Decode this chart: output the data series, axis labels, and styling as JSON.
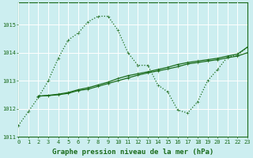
{
  "bg_color": "#cceef0",
  "grid_color": "#ffffff",
  "line_color": "#1a6b1a",
  "line1_x": [
    0,
    1,
    2,
    3,
    4,
    5,
    6,
    7,
    8,
    9,
    10,
    11,
    12,
    13,
    14,
    15,
    16,
    17,
    18,
    19,
    20,
    21,
    22,
    23
  ],
  "line1_y": [
    1011.4,
    1011.9,
    1012.4,
    1013.0,
    1013.8,
    1014.45,
    1014.7,
    1015.1,
    1015.3,
    1015.3,
    1014.8,
    1014.0,
    1013.55,
    1013.55,
    1012.85,
    1012.6,
    1011.95,
    1011.85,
    1012.25,
    1013.0,
    1013.4,
    1013.85,
    1013.9,
    1014.2
  ],
  "line2_x": [
    2,
    3,
    4,
    5,
    6,
    7,
    8,
    9,
    10,
    11,
    12,
    13,
    14,
    15,
    16,
    17,
    18,
    19,
    20,
    21,
    22,
    23
  ],
  "line2_y": [
    1012.45,
    1012.47,
    1012.5,
    1012.55,
    1012.65,
    1012.7,
    1012.8,
    1012.9,
    1013.0,
    1013.1,
    1013.2,
    1013.28,
    1013.35,
    1013.42,
    1013.5,
    1013.6,
    1013.65,
    1013.7,
    1013.75,
    1013.82,
    1013.88,
    1014.0
  ],
  "line3_x": [
    2,
    3,
    4,
    5,
    6,
    7,
    8,
    9,
    10,
    11,
    12,
    13,
    14,
    15,
    16,
    17,
    18,
    19,
    20,
    21,
    22,
    23
  ],
  "line3_y": [
    1012.45,
    1012.48,
    1012.52,
    1012.58,
    1012.68,
    1012.75,
    1012.85,
    1012.95,
    1013.08,
    1013.18,
    1013.25,
    1013.32,
    1013.4,
    1013.48,
    1013.58,
    1013.65,
    1013.7,
    1013.75,
    1013.8,
    1013.88,
    1013.95,
    1014.2
  ],
  "xlim": [
    0,
    23
  ],
  "ylim": [
    1011.0,
    1015.8
  ],
  "yticks": [
    1011,
    1012,
    1013,
    1014,
    1015
  ],
  "xticks": [
    0,
    1,
    2,
    3,
    4,
    5,
    6,
    7,
    8,
    9,
    10,
    11,
    12,
    13,
    14,
    15,
    16,
    17,
    18,
    19,
    20,
    21,
    22,
    23
  ],
  "xlabel": "Graphe pression niveau de la mer (hPa)",
  "xlabel_fontsize": 6.5,
  "tick_fontsize": 5.0
}
